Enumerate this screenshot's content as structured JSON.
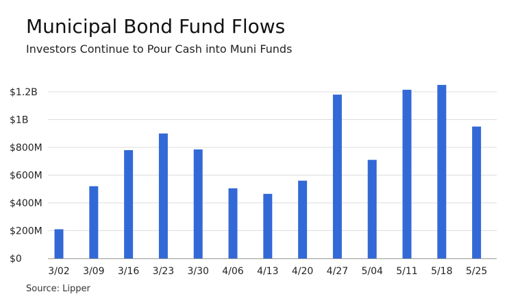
{
  "title": "Municipal Bond Fund Flows",
  "subtitle": "Investors Continue to Pour Cash into Muni Funds",
  "source": "Source: Lipper",
  "colors": {
    "bar": "#3369d6",
    "grid": "#dddddd",
    "axis": "#999999",
    "text": "#222222"
  },
  "chart_data": {
    "type": "bar",
    "categories": [
      "3/02",
      "3/09",
      "3/16",
      "3/23",
      "3/30",
      "4/06",
      "4/13",
      "4/20",
      "4/27",
      "5/04",
      "5/11",
      "5/18",
      "5/25"
    ],
    "values": [
      210000000,
      520000000,
      780000000,
      900000000,
      785000000,
      505000000,
      465000000,
      560000000,
      1180000000,
      710000000,
      1215000000,
      1250000000,
      950000000
    ],
    "title": "Municipal Bond Fund Flows",
    "subtitle": "Investors Continue to Pour Cash into Muni Funds",
    "xlabel": "",
    "ylabel": "",
    "ylim": [
      0,
      1200000000
    ],
    "yticks": [
      0,
      200000000,
      400000000,
      600000000,
      800000000,
      1000000000,
      1200000000
    ],
    "ytick_labels": [
      "$0",
      "$200M",
      "$400M",
      "$600M",
      "$800M",
      "$1B",
      "$1.2B"
    ],
    "grid": true,
    "legend": "none"
  }
}
